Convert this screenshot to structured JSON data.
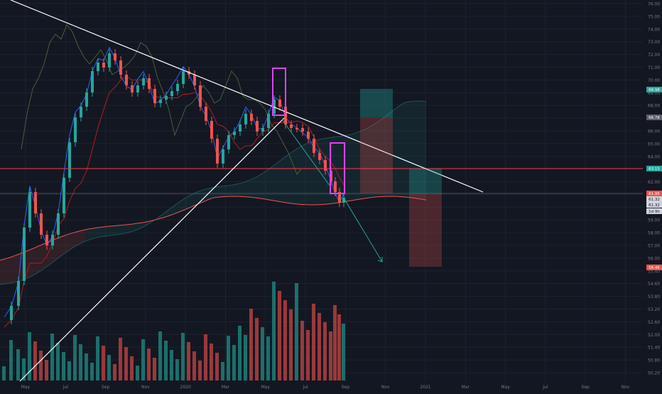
{
  "theme": {
    "background": "#131722",
    "grid": "#1e2230",
    "axis_text": "#787b86",
    "up": "#26a69a",
    "down": "#ef5350",
    "vol_up": "#1f7f78",
    "vol_down": "#b3403f",
    "white_line": "#ffffff",
    "magenta": "#e040fb",
    "arrow": "#26a69a"
  },
  "x_axis": {
    "ticks": [
      "May",
      "Jul",
      "Sep",
      "Nov",
      "2020",
      "Mar",
      "May",
      "Jul",
      "Sep",
      "Nov",
      "2021",
      "Mar",
      "May",
      "Jul",
      "Sep",
      "Nov"
    ]
  },
  "y_axis": {
    "ticks": [
      "76.00",
      "75.00",
      "74.00",
      "73.00",
      "72.00",
      "71.00",
      "70.00",
      "69.00",
      "68.00",
      "67.00",
      "66.00",
      "65.00",
      "64.00",
      "63.00",
      "62.00",
      "61.00",
      "60.00",
      "59.00",
      "58.00",
      "57.00",
      "56.00",
      "55.40",
      "54.60",
      "53.80",
      "53.20",
      "52.60",
      "52.00",
      "51.40",
      "50.80",
      "50.20"
    ]
  },
  "price_labels": [
    {
      "id": "target-up",
      "text": "68.98",
      "bg": "#26a69a",
      "fg": "#ffffff"
    },
    {
      "id": "gray",
      "text": "66.78",
      "bg": "#5d606b",
      "fg": "#ffffff"
    },
    {
      "id": "red-line",
      "text": "63.15",
      "bg": "#26a69a",
      "fg": "#ffffff"
    },
    {
      "id": "last-red",
      "text": "61.95",
      "bg": "#ef5350",
      "fg": "#ffffff"
    },
    {
      "id": "last-1",
      "text": "61.32",
      "bg": "#d1d4dc",
      "fg": "#131722"
    },
    {
      "id": "last-2",
      "text": "61.32",
      "bg": "#d1d4dc",
      "fg": "#131722"
    },
    {
      "id": "countdown",
      "text": "1d 9h",
      "bg": "#d1d4dc",
      "fg": "#131722"
    },
    {
      "id": "target-down",
      "text": "56.46",
      "bg": "#ef5350",
      "fg": "#ffffff"
    }
  ],
  "chart_data": {
    "type": "candlestick",
    "timeframe": "weekly",
    "indicators": [
      "Ichimoku Cloud",
      "Volume"
    ],
    "price_range": [
      50,
      76
    ],
    "horizontal_levels": [
      63.15,
      61.95
    ],
    "markers": [
      "68.98",
      "66.78",
      "63.15",
      "61.95",
      "61.32",
      "56.46"
    ]
  }
}
